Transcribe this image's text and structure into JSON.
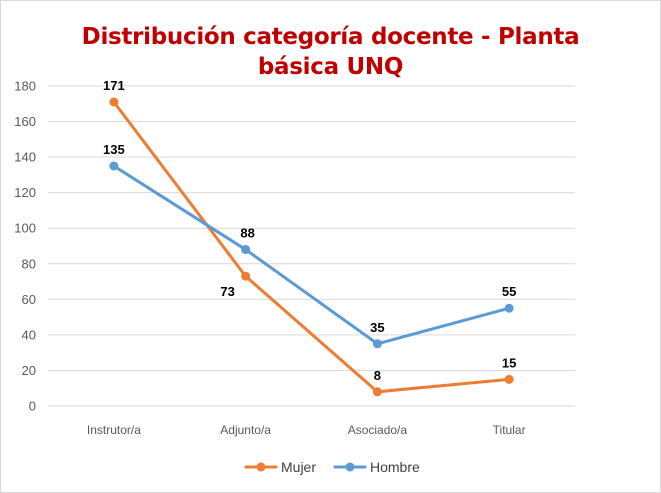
{
  "chart_data": {
    "type": "line",
    "title_line1": "Distribución categoría docente - Planta",
    "title_line2": "básica UNQ",
    "categories": [
      "Instrutor/a",
      "Adjunto/a",
      "Asociado/a",
      "Titular"
    ],
    "series": [
      {
        "name": "Mujer",
        "values": [
          171,
          73,
          8,
          15
        ],
        "color": "#ed7d31"
      },
      {
        "name": "Hombre",
        "values": [
          135,
          88,
          35,
          55
        ],
        "color": "#5b9bd5"
      }
    ],
    "ylim": [
      0,
      180
    ],
    "yticks": [
      "0",
      "20",
      "40",
      "60",
      "80",
      "100",
      "120",
      "140",
      "160",
      "180"
    ],
    "grid": true,
    "legend": "bottom"
  }
}
